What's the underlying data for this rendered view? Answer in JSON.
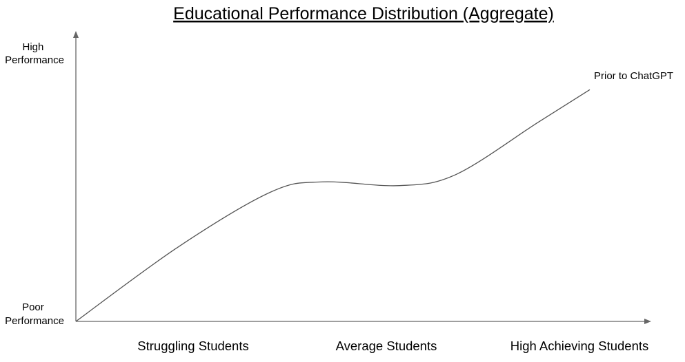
{
  "chart_data": {
    "type": "line",
    "title": "Educational Performance Distribution (Aggregate)",
    "y_axis": {
      "low_label": [
        "Poor",
        "Performance"
      ],
      "high_label": [
        "High",
        "Performance"
      ],
      "ylim": [
        0,
        100
      ]
    },
    "x_axis": {
      "categories": [
        "Struggling Students",
        "Average Students",
        "High Achieving Students"
      ],
      "xlim": [
        0,
        100
      ]
    },
    "grid": false,
    "series": [
      {
        "name": "Prior to ChatGPT",
        "color": "#555555",
        "points": [
          {
            "x": 0,
            "y": 0
          },
          {
            "x": 20,
            "y": 30
          },
          {
            "x": 38,
            "y": 52
          },
          {
            "x": 48,
            "y": 56
          },
          {
            "x": 63,
            "y": 54.5
          },
          {
            "x": 74,
            "y": 59
          },
          {
            "x": 90,
            "y": 80
          },
          {
            "x": 100,
            "y": 93
          }
        ]
      }
    ]
  }
}
